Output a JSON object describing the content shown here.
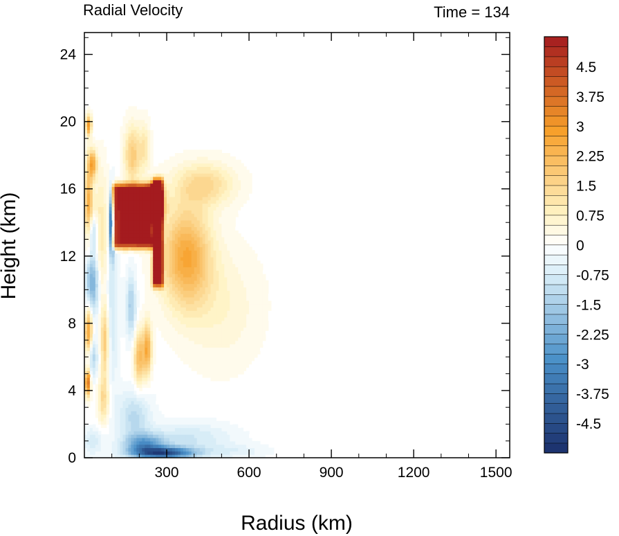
{
  "chart_data": {
    "type": "heatmap",
    "title": "Radial Velocity",
    "subtitle": "Time = 134",
    "xlabel": "Radius (km)",
    "ylabel": "Height (km)",
    "xlim": [
      0,
      1550
    ],
    "ylim": [
      0,
      25.3
    ],
    "x_ticks": [
      300,
      600,
      900,
      1200,
      1500
    ],
    "y_ticks": [
      0,
      4,
      8,
      12,
      16,
      20,
      24
    ],
    "x_minor_step": 100,
    "y_minor_step": 1,
    "colorbar": {
      "vmin": -5.25,
      "vmax": 5.25,
      "step": 0.25,
      "tick_values": [
        -4.5,
        -3.75,
        -3,
        -2.25,
        -1.5,
        -0.75,
        0,
        0.75,
        1.5,
        2.25,
        3,
        3.75,
        4.5
      ],
      "tick_labels": [
        "-4.5",
        "-3.75",
        "-3",
        "-2.25",
        "-1.5",
        "-0.75",
        "0",
        "0.75",
        "1.5",
        "2.25",
        "3",
        "3.75",
        "4.5"
      ],
      "colors": {
        "negative_strong": "#1a2f6b",
        "negative_mid": "#4a90c8",
        "negative_weak": "#d6ecf7",
        "zero": "#ffffff",
        "positive_weak": "#fff3c4",
        "positive_mid": "#f7a02a",
        "positive_strong": "#a41b1f"
      }
    },
    "features": [
      {
        "shape": "rect",
        "r0": 110,
        "r1": 255,
        "z0": 12.8,
        "z1": 16.0,
        "value": 5.2
      },
      {
        "shape": "rect",
        "r0": 255,
        "r1": 280,
        "z0": 10.5,
        "z1": 16.3,
        "value": 5.0
      },
      {
        "shape": "blob",
        "r": 260,
        "z": 15.2,
        "sr": 30,
        "sz": 1.0,
        "value": 4.5
      },
      {
        "shape": "blob",
        "r": 370,
        "z": 12.0,
        "sr": 90,
        "sz": 3.0,
        "value": 2.6
      },
      {
        "shape": "blob",
        "r": 440,
        "z": 16.3,
        "sr": 110,
        "sz": 1.3,
        "value": 1.4
      },
      {
        "shape": "blob",
        "r": 500,
        "z": 9.0,
        "sr": 140,
        "sz": 3.5,
        "value": 0.6
      },
      {
        "shape": "blob",
        "r": 15,
        "z": 15.0,
        "sr": 15,
        "sz": 2.5,
        "value": 2.5
      },
      {
        "shape": "blob",
        "r": 15,
        "z": 7.5,
        "sr": 14,
        "sz": 1.5,
        "value": 3.0
      },
      {
        "shape": "blob",
        "r": 12,
        "z": 4.5,
        "sr": 10,
        "sz": 0.8,
        "value": 4.0
      },
      {
        "shape": "blob",
        "r": 15,
        "z": 19.8,
        "sr": 10,
        "sz": 0.6,
        "value": 3.0
      },
      {
        "shape": "blob",
        "r": 30,
        "z": 17.5,
        "sr": 15,
        "sz": 0.8,
        "value": 2.5
      },
      {
        "shape": "blob",
        "r": 30,
        "z": 10.5,
        "sr": 25,
        "sz": 2.0,
        "value": -2.5
      },
      {
        "shape": "blob",
        "r": 30,
        "z": 13.5,
        "sr": 20,
        "sz": 1.0,
        "value": -1.5
      },
      {
        "shape": "blob",
        "r": 28,
        "z": 6.0,
        "sr": 20,
        "sz": 1.2,
        "value": -1.5
      },
      {
        "shape": "blob",
        "r": 60,
        "z": 13.0,
        "sr": 30,
        "sz": 4.0,
        "value": 1.2
      },
      {
        "shape": "blob",
        "r": 100,
        "z": 14.0,
        "sr": 8,
        "sz": 1.8,
        "value": -4.8
      },
      {
        "shape": "blob",
        "r": 100,
        "z": 9.0,
        "sr": 25,
        "sz": 5.0,
        "value": -0.9
      },
      {
        "shape": "blob",
        "r": 75,
        "z": 7.0,
        "sr": 15,
        "sz": 2.0,
        "value": 2.0
      },
      {
        "shape": "blob",
        "r": 70,
        "z": 3.5,
        "sr": 20,
        "sz": 1.5,
        "value": 1.5
      },
      {
        "shape": "blob",
        "r": 175,
        "z": 18.0,
        "sr": 30,
        "sz": 1.8,
        "value": 1.8
      },
      {
        "shape": "blob",
        "r": 220,
        "z": 18.5,
        "sr": 20,
        "sz": 1.5,
        "value": 1.0
      },
      {
        "shape": "blob",
        "r": 200,
        "z": 6.0,
        "sr": 20,
        "sz": 1.6,
        "value": 2.2
      },
      {
        "shape": "blob",
        "r": 170,
        "z": 9.0,
        "sr": 18,
        "sz": 2.0,
        "value": -1.5
      },
      {
        "shape": "blob",
        "r": 230,
        "z": 6.5,
        "sr": 15,
        "sz": 1.5,
        "value": 2.5
      },
      {
        "shape": "blob",
        "r": 250,
        "z": 14.0,
        "sr": 8,
        "sz": 1.5,
        "value": -3.2
      },
      {
        "shape": "blob",
        "r": 290,
        "z": 0.3,
        "sr": 110,
        "sz": 0.35,
        "value": -4.2
      },
      {
        "shape": "blob",
        "r": 220,
        "z": 0.8,
        "sr": 70,
        "sz": 0.6,
        "value": -2.5
      },
      {
        "shape": "blob",
        "r": 380,
        "z": 1.2,
        "sr": 160,
        "sz": 0.9,
        "value": -0.9
      },
      {
        "shape": "blob",
        "r": 180,
        "z": 2.5,
        "sr": 60,
        "sz": 1.5,
        "value": -1.2
      },
      {
        "shape": "blob",
        "r": 550,
        "z": 0.4,
        "sr": 120,
        "sz": 0.4,
        "value": -0.5
      },
      {
        "shape": "blob",
        "r": 30,
        "z": 1.0,
        "sr": 40,
        "sz": 0.8,
        "value": -0.8
      }
    ]
  }
}
